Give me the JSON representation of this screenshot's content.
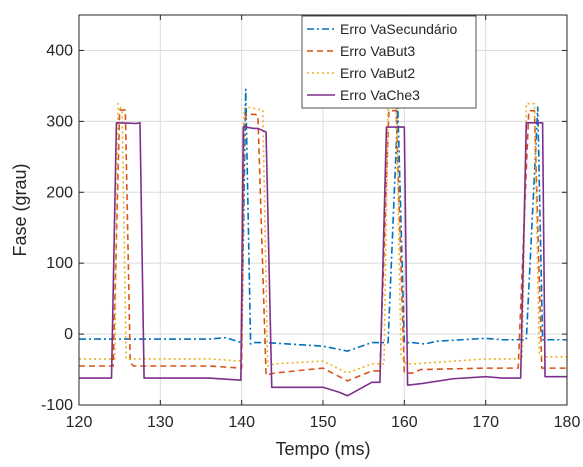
{
  "chart_data": {
    "type": "line",
    "title": "",
    "xlabel": "Tempo (ms)",
    "ylabel": "Fase (grau)",
    "xlim": [
      120,
      180
    ],
    "ylim": [
      -100,
      450
    ],
    "xticks": [
      120,
      130,
      140,
      150,
      160,
      170,
      180
    ],
    "yticks": [
      -100,
      0,
      100,
      200,
      300,
      400
    ],
    "grid": true,
    "legend": "top-right",
    "series": [
      {
        "name": "Erro VaSecundário",
        "color": "#0072bd",
        "dash": "dashdot",
        "x": [
          120,
          124,
          126,
          128,
          136,
          138,
          140,
          140.5,
          141.1,
          141.6,
          143,
          150,
          153,
          156,
          158,
          159.2,
          160,
          161,
          162.5,
          164,
          170,
          172,
          175,
          176.4,
          177,
          180
        ],
        "y": [
          -7,
          -7,
          -7,
          -7,
          -7,
          -5,
          -12,
          345,
          -14,
          -12,
          -12,
          -17,
          -24,
          -12,
          -12,
          320,
          -12,
          -12,
          -14,
          -10,
          -6,
          -8,
          -8,
          320,
          -8,
          -8
        ]
      },
      {
        "name": "Erro VaBut3",
        "color": "#d95319",
        "dash": "dash",
        "x": [
          120,
          124.2,
          125,
          125.7,
          126.3,
          126.7,
          128,
          136,
          140,
          140.3,
          140.6,
          141.6,
          142,
          143,
          144,
          150,
          153,
          156,
          157,
          158.1,
          159,
          160,
          161,
          162,
          170,
          174,
          175.3,
          176,
          176.9,
          177.5,
          180
        ],
        "y": [
          -45,
          -45,
          316,
          316,
          -40,
          -45,
          -45,
          -45,
          -48,
          300,
          310,
          310,
          308,
          -58,
          -55,
          -48,
          -66,
          -52,
          -52,
          315,
          315,
          -55,
          -55,
          -50,
          -48,
          -48,
          315,
          315,
          -48,
          -48,
          -48
        ],
        "note": ""
      },
      {
        "name": "Erro VaBut2",
        "color": "#edb120",
        "dash": "dot",
        "x": [
          120,
          124.4,
          124.8,
          125.3,
          125.8,
          126.1,
          128,
          136,
          140,
          140.3,
          140.7,
          141.6,
          142.6,
          143.2,
          144,
          150,
          153,
          156,
          157.5,
          158,
          159,
          159.6,
          160.2,
          161,
          170,
          174.5,
          175,
          176,
          176.6,
          177.1,
          180
        ],
        "y": [
          -35,
          -35,
          325,
          315,
          -35,
          -35,
          -35,
          -35,
          -38,
          318,
          320,
          318,
          316,
          -45,
          -42,
          -38,
          -55,
          -42,
          -42,
          325,
          325,
          -30,
          -42,
          -42,
          -35,
          -35,
          325,
          325,
          -30,
          -32,
          -32
        ]
      },
      {
        "name": "Erro VaChe3",
        "color": "#7e2f8e",
        "dash": "solid",
        "x": [
          120,
          124,
          124.6,
          125,
          127,
          127.5,
          128,
          136,
          139.9,
          140.2,
          140.5,
          141.5,
          142,
          143,
          143.7,
          144,
          150,
          152,
          153,
          156,
          157,
          157.8,
          158.3,
          160,
          160.4,
          162,
          166,
          170,
          172,
          174.3,
          175,
          177,
          177.3,
          178,
          180
        ],
        "y": [
          -62,
          -62,
          298,
          298,
          297,
          298,
          -62,
          -62,
          -65,
          292,
          292,
          290,
          290,
          285,
          -75,
          -75,
          -75,
          -82,
          -87,
          -68,
          -68,
          292,
          292,
          292,
          -72,
          -70,
          -63,
          -60,
          -62,
          -62,
          298,
          298,
          -60,
          -60,
          -60
        ]
      }
    ]
  }
}
